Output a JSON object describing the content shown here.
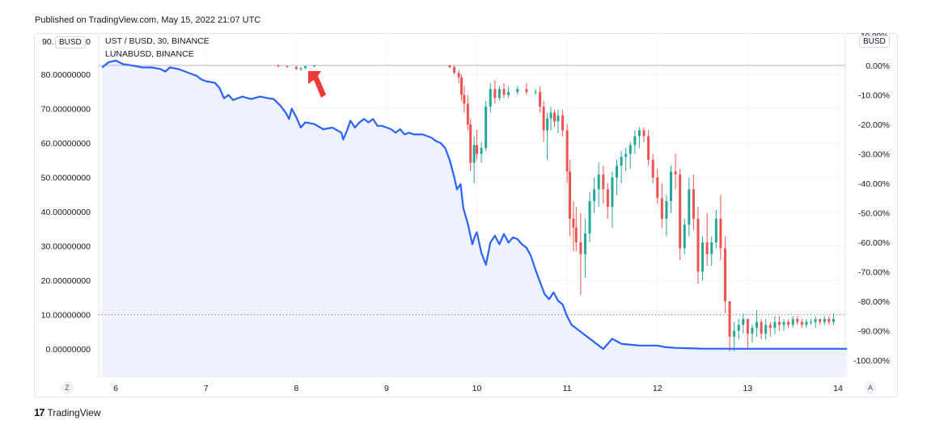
{
  "published": "Published on TradingView.com, May 15, 2022 21:07 UTC",
  "legend": {
    "line1": "UST / BUSD, 30, BINANCE",
    "line2": "LUNABUSD, BINANCE"
  },
  "left_unit": "BUSD",
  "right_unit": "BUSD",
  "left_top_label_partial": "90.",
  "left_top_label_tail": "000",
  "right_top_label_partial": "10.00%",
  "axis_buttons": {
    "left": "Z",
    "right": "A"
  },
  "brand": {
    "logo": "17",
    "name": "TradingView"
  },
  "colors": {
    "luna_line": "#2962ff",
    "luna_fill": "#eef2ff",
    "candle_up": "#26a69a",
    "candle_down": "#ef5350",
    "ref_line": "#ef5350",
    "arrow": "#ef3a3a",
    "grid": "#f0f3fa"
  },
  "chart_data": {
    "type": "line",
    "x_ticks": [
      "6",
      "7",
      "8",
      "9",
      "10",
      "11",
      "12",
      "13",
      "14"
    ],
    "left_axis": {
      "ticks": [
        "80.00000000",
        "70.00000000",
        "60.00000000",
        "50.00000000",
        "40.00000000",
        "30.00000000",
        "20.00000000",
        "10.00000000",
        "0.00000000"
      ],
      "values": [
        80,
        70,
        60,
        50,
        40,
        30,
        20,
        10,
        0
      ],
      "ylim": [
        -5,
        90
      ]
    },
    "right_axis": {
      "ticks": [
        "0.00%",
        "-10.00%",
        "-20.00%",
        "-30.00%",
        "-40.00%",
        "-50.00%",
        "-60.00%",
        "-70.00%",
        "-80.00%",
        "-90.00%",
        "-100.00%"
      ],
      "values": [
        0,
        -10,
        -20,
        -30,
        -40,
        -50,
        -60,
        -70,
        -80,
        -90,
        -100
      ]
    },
    "series": [
      {
        "name": "LUNABUSD, BINANCE",
        "axis": "left",
        "points": [
          [
            5.85,
            82
          ],
          [
            5.92,
            83.5
          ],
          [
            6.0,
            84
          ],
          [
            6.08,
            83
          ],
          [
            6.2,
            82.5
          ],
          [
            6.3,
            82
          ],
          [
            6.4,
            82
          ],
          [
            6.5,
            81.5
          ],
          [
            6.55,
            80.8
          ],
          [
            6.6,
            82
          ],
          [
            6.7,
            81.5
          ],
          [
            6.8,
            80.5
          ],
          [
            6.9,
            79.5
          ],
          [
            6.95,
            78.5
          ],
          [
            7.0,
            78
          ],
          [
            7.1,
            77.5
          ],
          [
            7.15,
            76
          ],
          [
            7.2,
            73
          ],
          [
            7.25,
            74
          ],
          [
            7.3,
            72.5
          ],
          [
            7.4,
            73.5
          ],
          [
            7.5,
            72.8
          ],
          [
            7.6,
            73.5
          ],
          [
            7.7,
            73
          ],
          [
            7.75,
            72.8
          ],
          [
            7.82,
            71
          ],
          [
            7.88,
            69
          ],
          [
            7.92,
            67
          ],
          [
            7.95,
            70
          ],
          [
            8.0,
            67.5
          ],
          [
            8.05,
            64.5
          ],
          [
            8.1,
            66
          ],
          [
            8.2,
            65.5
          ],
          [
            8.3,
            64
          ],
          [
            8.4,
            64.5
          ],
          [
            8.5,
            63
          ],
          [
            8.52,
            61
          ],
          [
            8.56,
            63.5
          ],
          [
            8.6,
            66.5
          ],
          [
            8.65,
            64.5
          ],
          [
            8.7,
            66
          ],
          [
            8.75,
            67
          ],
          [
            8.8,
            66
          ],
          [
            8.85,
            67
          ],
          [
            8.9,
            65
          ],
          [
            8.95,
            65
          ],
          [
            9.0,
            64.5
          ],
          [
            9.05,
            64
          ],
          [
            9.1,
            63
          ],
          [
            9.15,
            64
          ],
          [
            9.2,
            62.5
          ],
          [
            9.25,
            63
          ],
          [
            9.3,
            62.5
          ],
          [
            9.4,
            62.5
          ],
          [
            9.5,
            61.5
          ],
          [
            9.55,
            60.5
          ],
          [
            9.6,
            60
          ],
          [
            9.65,
            58.5
          ],
          [
            9.7,
            55
          ],
          [
            9.75,
            50
          ],
          [
            9.78,
            46.5
          ],
          [
            9.82,
            48
          ],
          [
            9.85,
            41
          ],
          [
            9.9,
            36.5
          ],
          [
            9.95,
            30.5
          ],
          [
            9.98,
            33
          ],
          [
            10.0,
            34
          ],
          [
            10.05,
            28
          ],
          [
            10.1,
            24.5
          ],
          [
            10.15,
            31
          ],
          [
            10.2,
            33
          ],
          [
            10.25,
            30.5
          ],
          [
            10.3,
            33.5
          ],
          [
            10.35,
            31
          ],
          [
            10.4,
            32.5
          ],
          [
            10.45,
            32
          ],
          [
            10.5,
            30.5
          ],
          [
            10.55,
            29.5
          ],
          [
            10.6,
            27
          ],
          [
            10.65,
            23
          ],
          [
            10.7,
            19.5
          ],
          [
            10.75,
            16
          ],
          [
            10.8,
            14.5
          ],
          [
            10.85,
            16.5
          ],
          [
            10.9,
            14
          ],
          [
            10.95,
            13
          ],
          [
            11.0,
            9.5
          ],
          [
            11.05,
            7
          ],
          [
            11.1,
            6
          ],
          [
            11.2,
            4
          ],
          [
            11.3,
            2
          ],
          [
            11.4,
            0
          ],
          [
            11.45,
            1.5
          ],
          [
            11.5,
            3
          ],
          [
            11.6,
            1.5
          ],
          [
            11.8,
            1
          ],
          [
            12.0,
            1
          ],
          [
            12.1,
            0.5
          ],
          [
            12.2,
            0.3
          ],
          [
            12.5,
            0.1
          ],
          [
            13.0,
            0.05
          ],
          [
            14.1,
            0.05
          ]
        ]
      },
      {
        "name": "UST / BUSD, 30, BINANCE",
        "axis": "right",
        "type": "candlestick",
        "ohlc_pct": [
          [
            7.8,
            0,
            0.3,
            -0.6,
            -0.3
          ],
          [
            7.9,
            -0.3,
            0,
            -0.8,
            -0.5
          ],
          [
            8.0,
            -0.5,
            -0.2,
            -1.5,
            -1.2
          ],
          [
            8.05,
            -1.2,
            -0.6,
            -1.9,
            -0.9
          ],
          [
            8.1,
            -0.9,
            0,
            -1.2,
            -0.3
          ],
          [
            8.2,
            -0.3,
            0.2,
            -0.6,
            -0.1
          ],
          [
            9.7,
            0,
            0.2,
            -1,
            -0.6
          ],
          [
            9.75,
            -0.6,
            0,
            -3,
            -2.5
          ],
          [
            9.8,
            -2.5,
            -1.5,
            -6,
            -4
          ],
          [
            9.83,
            -4,
            -3,
            -12,
            -10
          ],
          [
            9.86,
            -10,
            -7,
            -16,
            -13
          ],
          [
            9.9,
            -13,
            -10,
            -22,
            -20
          ],
          [
            9.93,
            -20,
            -18,
            -36,
            -33
          ],
          [
            9.97,
            -33,
            -24,
            -40,
            -27
          ],
          [
            10.0,
            -27,
            -22,
            -32,
            -30
          ],
          [
            10.05,
            -30,
            -26,
            -33,
            -28
          ],
          [
            10.1,
            -28,
            -12,
            -29,
            -14
          ],
          [
            10.15,
            -14,
            -6,
            -16,
            -8
          ],
          [
            10.2,
            -8,
            -5,
            -13,
            -11
          ],
          [
            10.25,
            -11,
            -7,
            -12,
            -8
          ],
          [
            10.3,
            -8,
            -6,
            -11,
            -10
          ],
          [
            10.35,
            -10,
            -7,
            -11,
            -9
          ],
          [
            10.45,
            -9,
            -7,
            -10,
            -8
          ],
          [
            10.55,
            -8,
            -6,
            -10,
            -9
          ],
          [
            10.65,
            -9,
            -8,
            -10,
            -9
          ],
          [
            10.7,
            -9,
            -7,
            -16,
            -14
          ],
          [
            10.74,
            -14,
            -12,
            -26,
            -22
          ],
          [
            10.78,
            -22,
            -16,
            -32,
            -18
          ],
          [
            10.82,
            -18,
            -14,
            -22,
            -16
          ],
          [
            10.86,
            -16,
            -15,
            -21,
            -19
          ],
          [
            10.9,
            -19,
            -15,
            -23,
            -17
          ],
          [
            10.95,
            -17,
            -15,
            -24,
            -22
          ],
          [
            11.0,
            -22,
            -20,
            -40,
            -36
          ],
          [
            11.03,
            -36,
            -32,
            -58,
            -52
          ],
          [
            11.07,
            -52,
            -46,
            -63,
            -55
          ],
          [
            11.1,
            -55,
            -48,
            -63,
            -60
          ],
          [
            11.15,
            -60,
            -50,
            -78,
            -64
          ],
          [
            11.2,
            -64,
            -52,
            -72,
            -57
          ],
          [
            11.25,
            -57,
            -43,
            -60,
            -46
          ],
          [
            11.3,
            -46,
            -38,
            -50,
            -42
          ],
          [
            11.35,
            -42,
            -33,
            -48,
            -37
          ],
          [
            11.4,
            -37,
            -34,
            -47,
            -42
          ],
          [
            11.45,
            -42,
            -40,
            -52,
            -48
          ],
          [
            11.5,
            -48,
            -36,
            -55,
            -38
          ],
          [
            11.55,
            -38,
            -32,
            -44,
            -34
          ],
          [
            11.6,
            -34,
            -29,
            -40,
            -31
          ],
          [
            11.65,
            -31,
            -28,
            -36,
            -30
          ],
          [
            11.7,
            -30,
            -26,
            -35,
            -27
          ],
          [
            11.75,
            -27,
            -22,
            -30,
            -24
          ],
          [
            11.8,
            -24,
            -21,
            -28,
            -22
          ],
          [
            11.85,
            -22,
            -21,
            -26,
            -24
          ],
          [
            11.9,
            -24,
            -22,
            -34,
            -32
          ],
          [
            11.95,
            -32,
            -30,
            -40,
            -38
          ],
          [
            12.0,
            -38,
            -35,
            -47,
            -45
          ],
          [
            12.05,
            -45,
            -40,
            -55,
            -52
          ],
          [
            12.1,
            -52,
            -44,
            -58,
            -46
          ],
          [
            12.15,
            -46,
            -34,
            -50,
            -36
          ],
          [
            12.2,
            -36,
            -30,
            -42,
            -37
          ],
          [
            12.25,
            -37,
            -35,
            -66,
            -62
          ],
          [
            12.3,
            -62,
            -52,
            -64,
            -54
          ],
          [
            12.35,
            -54,
            -38,
            -58,
            -42
          ],
          [
            12.4,
            -42,
            -37,
            -56,
            -52
          ],
          [
            12.45,
            -52,
            -48,
            -74,
            -70
          ],
          [
            12.5,
            -70,
            -58,
            -73,
            -60
          ],
          [
            12.55,
            -60,
            -50,
            -68,
            -64
          ],
          [
            12.6,
            -64,
            -58,
            -68,
            -60
          ],
          [
            12.65,
            -60,
            -49,
            -62,
            -52
          ],
          [
            12.7,
            -52,
            -44,
            -66,
            -62
          ],
          [
            12.75,
            -62,
            -58,
            -84,
            -80
          ],
          [
            12.8,
            -80,
            -88,
            -97,
            -92
          ],
          [
            12.85,
            -92,
            -87,
            -97,
            -90
          ],
          [
            12.9,
            -90,
            -86,
            -93,
            -88
          ],
          [
            12.95,
            -88,
            -84,
            -91,
            -86
          ],
          [
            13.0,
            -86,
            -86,
            -96,
            -91
          ],
          [
            13.05,
            -91,
            -88,
            -94,
            -89
          ],
          [
            13.1,
            -89,
            -83,
            -92,
            -87
          ],
          [
            13.15,
            -87,
            -86,
            -93,
            -91
          ],
          [
            13.2,
            -91,
            -86,
            -93,
            -88
          ],
          [
            13.25,
            -88,
            -87,
            -92,
            -89
          ],
          [
            13.3,
            -89,
            -85,
            -91,
            -87
          ],
          [
            13.35,
            -87,
            -85,
            -90,
            -88
          ],
          [
            13.4,
            -88,
            -86,
            -90,
            -87
          ],
          [
            13.45,
            -87,
            -86,
            -89,
            -88
          ],
          [
            13.5,
            -88,
            -85,
            -89,
            -86
          ],
          [
            13.55,
            -86,
            -85,
            -88,
            -87
          ],
          [
            13.6,
            -87,
            -86,
            -89,
            -88
          ],
          [
            13.65,
            -88,
            -86,
            -89,
            -87
          ],
          [
            13.7,
            -87,
            -86,
            -88,
            -87
          ],
          [
            13.75,
            -87,
            -85,
            -89,
            -86
          ],
          [
            13.8,
            -86,
            -86,
            -88,
            -87
          ],
          [
            13.85,
            -87,
            -85,
            -88,
            -86
          ],
          [
            13.9,
            -86,
            -85,
            -88,
            -87
          ],
          [
            13.95,
            -87,
            -84,
            -88,
            -86
          ]
        ]
      }
    ],
    "reference_lines": [
      {
        "axis": "left",
        "value": 10,
        "style": "dotted"
      }
    ],
    "grid": true
  }
}
